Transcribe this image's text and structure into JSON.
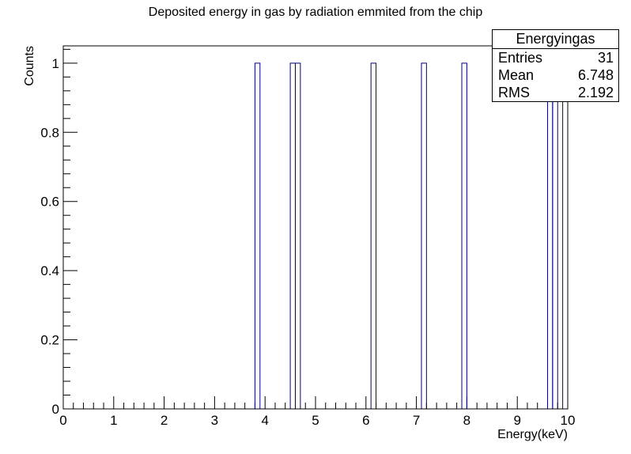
{
  "chart_data": {
    "type": "bar",
    "title": "Deposited energy in gas by radiation emmited from the chip",
    "xlabel": "Energy(keV)",
    "ylabel": "Counts",
    "xlim": [
      0,
      10
    ],
    "ylim": [
      0,
      1.05
    ],
    "grid": false,
    "x_ticks": [
      "0",
      "1",
      "2",
      "3",
      "4",
      "5",
      "6",
      "7",
      "8",
      "9",
      "10"
    ],
    "y_ticks": [
      "0",
      "0.2",
      "0.4",
      "0.6",
      "0.8",
      "1"
    ],
    "bin_width": 0.1,
    "bins": [
      {
        "low": 3.8,
        "high": 3.9,
        "count": 1
      },
      {
        "low": 4.5,
        "high": 4.6,
        "count": 1
      },
      {
        "low": 4.6,
        "high": 4.7,
        "count": 1
      },
      {
        "low": 6.1,
        "high": 6.2,
        "count": 1
      },
      {
        "low": 7.1,
        "high": 7.2,
        "count": 1
      },
      {
        "low": 7.9,
        "high": 8.0,
        "count": 1
      },
      {
        "low": 9.6,
        "high": 9.7,
        "count": 1
      },
      {
        "low": 9.7,
        "high": 9.8,
        "count": 1
      },
      {
        "low": 9.9,
        "high": 10.0,
        "count": 1
      }
    ],
    "line_color": "#000080",
    "stats_box": {
      "name": "Energyingas",
      "placement": "top-right",
      "rows": [
        {
          "label": "Entries",
          "value": "31"
        },
        {
          "label": "Mean",
          "value": "6.748"
        },
        {
          "label": "RMS",
          "value": "2.192"
        }
      ]
    }
  }
}
